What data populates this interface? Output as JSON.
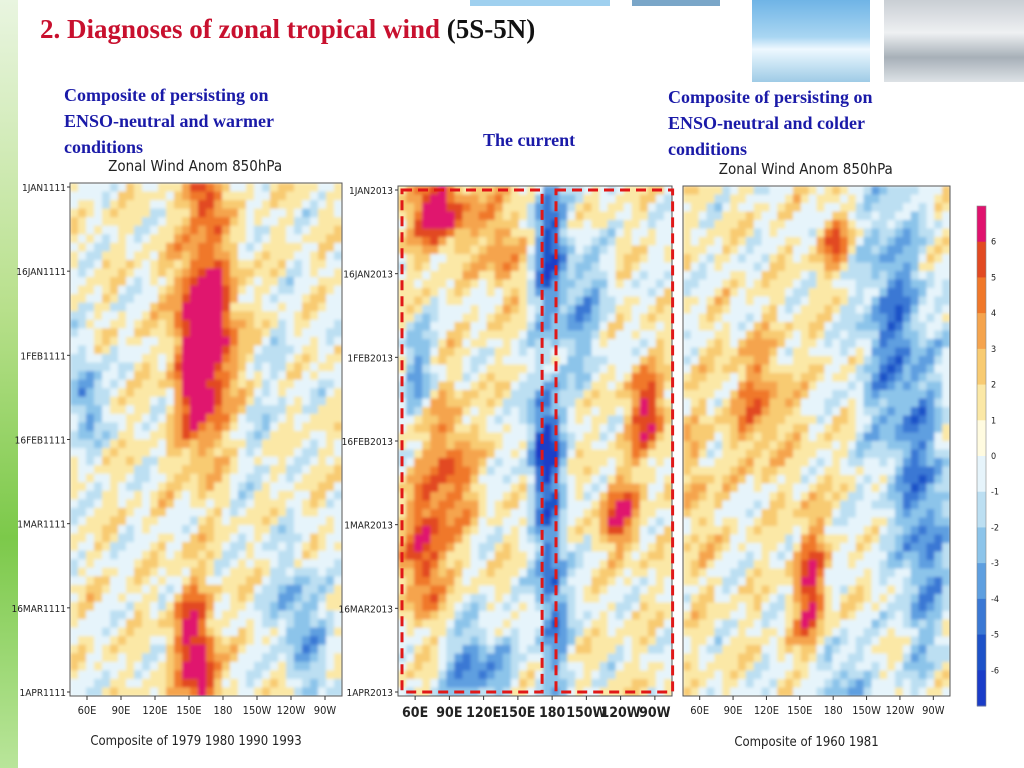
{
  "title": {
    "main": "2. Diagnoses of zonal tropical wind",
    "region": "(5S-5N)"
  },
  "captions": {
    "left": [
      "Composite of persisting on",
      "ENSO-neutral and warmer",
      "conditions"
    ],
    "middle": "The current",
    "right": [
      "Composite of persisting on",
      "ENSO-neutral and colder",
      "conditions"
    ]
  },
  "colors": {
    "title_red": "#c8102e",
    "caption_blue": "#1a1aa8",
    "box_red": "#e01818"
  },
  "chart_data": [
    {
      "type": "heatmap",
      "title": "Zonal Wind Anom 850hPa",
      "xlabel": "Composite of 1979 1980 1990 1993",
      "x_ticks": [
        "60E",
        "90E",
        "120E",
        "150E",
        "180",
        "150W",
        "120W",
        "90W"
      ],
      "y_ticks": [
        "1JAN1111",
        "16JAN1111",
        "1FEB1111",
        "16FEB1111",
        "1MAR1111",
        "16MAR1111",
        "1APR1111"
      ],
      "x_range": [
        "60E",
        "90W"
      ],
      "y_range": [
        "1JAN",
        "1APR"
      ],
      "features": [
        {
          "lon": 165,
          "day": 2,
          "value": 5,
          "extent_lon": 12,
          "extent_day": 5
        },
        {
          "lon": 160,
          "day": 30,
          "value": 6,
          "extent_lon": 18,
          "extent_day": 18
        },
        {
          "lon": 172,
          "day": 25,
          "value": 4,
          "extent_lon": 25,
          "extent_day": 15
        },
        {
          "lon": 155,
          "day": 80,
          "value": 5,
          "extent_lon": 15,
          "extent_day": 10
        },
        {
          "lon": 162,
          "day": 88,
          "value": 4,
          "extent_lon": 12,
          "extent_day": 8
        },
        {
          "lon": 72,
          "day": 38,
          "value": -4,
          "extent_lon": 12,
          "extent_day": 8
        },
        {
          "lon": 232,
          "day": 75,
          "value": -3,
          "extent_lon": 15,
          "extent_day": 10
        },
        {
          "lon": 252,
          "day": 85,
          "value": -2,
          "extent_lon": 15,
          "extent_day": 12
        },
        {
          "lon": 205,
          "day": 35,
          "value": -1,
          "extent_lon": 25,
          "extent_day": 20
        }
      ]
    },
    {
      "type": "heatmap",
      "title": "The current",
      "x_ticks": [
        "60E",
        "90E",
        "120E",
        "150E",
        "180",
        "150W",
        "120W",
        "90W"
      ],
      "y_ticks": [
        "1JAN2013",
        "16JAN2013",
        "1FEB2013",
        "16FEB2013",
        "1MAR2013",
        "16MAR2013",
        "1APR2013"
      ],
      "x_range": [
        "60E",
        "90W"
      ],
      "y_range": [
        "1JAN2013",
        "1APR2013"
      ],
      "boxes": [
        {
          "lon_from": 60,
          "lon_to": 172,
          "day_from": 0,
          "day_to": 90
        },
        {
          "lon_from": 178,
          "lon_to": 272,
          "day_from": 0,
          "day_to": 90
        }
      ],
      "features": [
        {
          "lon": 90,
          "day": 4,
          "value": 6,
          "extent_lon": 25,
          "extent_day": 7
        },
        {
          "lon": 140,
          "day": 10,
          "value": 3,
          "extent_lon": 15,
          "extent_day": 10
        },
        {
          "lon": 175,
          "day": 10,
          "value": -5,
          "extent_lon": 12,
          "extent_day": 15
        },
        {
          "lon": 172,
          "day": 45,
          "value": -6,
          "extent_lon": 12,
          "extent_day": 10
        },
        {
          "lon": 178,
          "day": 70,
          "value": -5,
          "extent_lon": 12,
          "extent_day": 20
        },
        {
          "lon": 100,
          "day": 50,
          "value": 4,
          "extent_lon": 18,
          "extent_day": 12
        },
        {
          "lon": 80,
          "day": 65,
          "value": 5,
          "extent_lon": 15,
          "extent_day": 12
        },
        {
          "lon": 250,
          "day": 40,
          "value": 5,
          "extent_lon": 15,
          "extent_day": 8
        },
        {
          "lon": 230,
          "day": 58,
          "value": 5,
          "extent_lon": 15,
          "extent_day": 6
        },
        {
          "lon": 200,
          "day": 22,
          "value": -3,
          "extent_lon": 20,
          "extent_day": 12
        },
        {
          "lon": 75,
          "day": 32,
          "value": -3,
          "extent_lon": 12,
          "extent_day": 8
        },
        {
          "lon": 120,
          "day": 85,
          "value": -4,
          "extent_lon": 25,
          "extent_day": 8
        }
      ]
    },
    {
      "type": "heatmap",
      "title": "Zonal Wind Anom 850hPa",
      "xlabel": "Composite of 1960 1981",
      "x_ticks": [
        "60E",
        "90E",
        "120E",
        "150E",
        "180",
        "150W",
        "120W",
        "90W"
      ],
      "x_range": [
        "60E",
        "90W"
      ],
      "y_range": [
        "1JAN",
        "1APR"
      ],
      "features": [
        {
          "lon": 180,
          "day": 10,
          "value": 4,
          "extent_lon": 12,
          "extent_day": 5
        },
        {
          "lon": 120,
          "day": 38,
          "value": 3,
          "extent_lon": 25,
          "extent_day": 12
        },
        {
          "lon": 160,
          "day": 72,
          "value": 5,
          "extent_lon": 12,
          "extent_day": 14
        },
        {
          "lon": 225,
          "day": 25,
          "value": -4,
          "extent_lon": 25,
          "extent_day": 25
        },
        {
          "lon": 250,
          "day": 60,
          "value": -4,
          "extent_lon": 20,
          "extent_day": 25
        },
        {
          "lon": 180,
          "day": 88,
          "value": -3,
          "extent_lon": 25,
          "extent_day": 8
        },
        {
          "lon": 70,
          "day": 55,
          "value": 2,
          "extent_lon": 12,
          "extent_day": 15
        }
      ]
    }
  ],
  "colorbar": {
    "labels": [
      "6",
      "5",
      "4",
      "3",
      "2",
      "1",
      "0",
      "-1",
      "-2",
      "-3",
      "-4",
      "-5",
      "-6"
    ],
    "colors": [
      "#e0126e",
      "#e24a22",
      "#f0782a",
      "#f5a44e",
      "#f8cb72",
      "#fbe8a6",
      "#fffbe0",
      "#e6f4fb",
      "#bcdff2",
      "#8cc4ea",
      "#5e9fe0",
      "#3a78d4",
      "#1d52c8",
      "#1a3cc8"
    ]
  }
}
